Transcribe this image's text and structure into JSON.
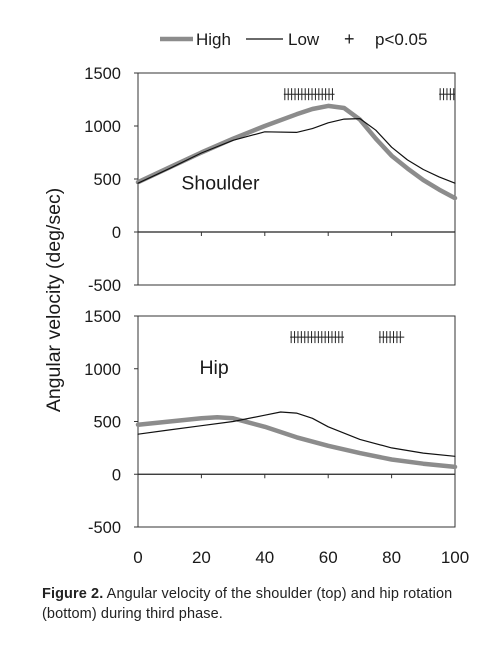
{
  "legend": {
    "entries": [
      {
        "label": "High",
        "style": "thick",
        "color": "#8c8c8c"
      },
      {
        "label": "Low",
        "style": "thin",
        "color": "#111111"
      },
      {
        "label": "p<0.05",
        "style": "plus",
        "symbol": "+"
      }
    ]
  },
  "ylabel": "Angular velocity (deg/sec)",
  "caption": {
    "label": "Figure 2.",
    "text": " Angular velocity of the shoulder (top) and hip rotation (bottom) during third phase."
  },
  "chart_data": [
    {
      "type": "line",
      "annotation": "Shoulder",
      "xlim": [
        0,
        100
      ],
      "ylim": [
        -500,
        1500
      ],
      "yticks": [
        -500,
        0,
        500,
        1000,
        1500
      ],
      "xticks": [
        0,
        20,
        40,
        60,
        80,
        100
      ],
      "series": [
        {
          "name": "High",
          "x": [
            0,
            10,
            20,
            30,
            40,
            50,
            55,
            60,
            65,
            70,
            75,
            80,
            85,
            90,
            95,
            100
          ],
          "values": [
            470,
            610,
            750,
            880,
            1000,
            1110,
            1160,
            1190,
            1170,
            1060,
            880,
            720,
            600,
            490,
            400,
            320
          ]
        },
        {
          "name": "Low",
          "x": [
            0,
            10,
            20,
            30,
            40,
            50,
            55,
            60,
            65,
            70,
            75,
            80,
            85,
            90,
            95,
            100
          ],
          "values": [
            460,
            600,
            745,
            865,
            945,
            940,
            975,
            1030,
            1065,
            1070,
            960,
            800,
            680,
            590,
            520,
            460
          ]
        }
      ],
      "significance_ranges": [
        [
          46,
          62
        ],
        [
          95,
          100
        ]
      ]
    },
    {
      "type": "line",
      "annotation": "Hip",
      "xlim": [
        0,
        100
      ],
      "ylim": [
        -500,
        1500
      ],
      "yticks": [
        -500,
        0,
        500,
        1000,
        1500
      ],
      "xticks": [
        0,
        20,
        40,
        60,
        80,
        100
      ],
      "xtick_labels": [
        "0",
        "20",
        "40",
        "60",
        "80",
        "100"
      ],
      "series": [
        {
          "name": "High",
          "x": [
            0,
            10,
            20,
            25,
            30,
            40,
            50,
            60,
            70,
            80,
            90,
            100
          ],
          "values": [
            470,
            500,
            530,
            540,
            530,
            450,
            350,
            270,
            200,
            140,
            100,
            70
          ]
        },
        {
          "name": "Low",
          "x": [
            0,
            10,
            20,
            30,
            40,
            45,
            50,
            55,
            60,
            70,
            80,
            90,
            100
          ],
          "values": [
            380,
            420,
            460,
            500,
            560,
            590,
            580,
            530,
            450,
            330,
            250,
            200,
            170
          ]
        }
      ],
      "significance_ranges": [
        [
          48,
          65
        ],
        [
          76,
          84
        ]
      ]
    }
  ]
}
